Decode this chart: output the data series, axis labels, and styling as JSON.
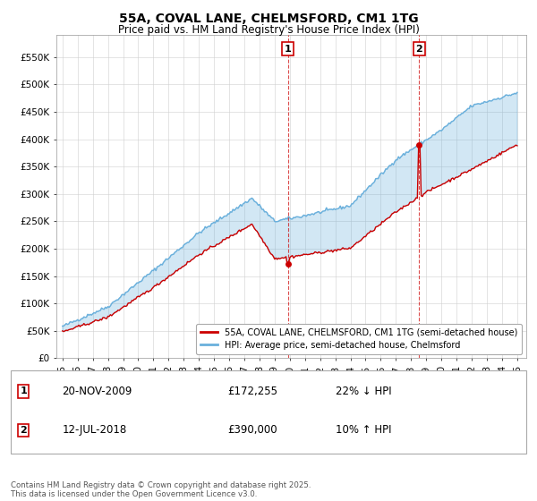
{
  "title1": "55A, COVAL LANE, CHELMSFORD, CM1 1TG",
  "title2": "Price paid vs. HM Land Registry's House Price Index (HPI)",
  "legend_line1": "55A, COVAL LANE, CHELMSFORD, CM1 1TG (semi-detached house)",
  "legend_line2": "HPI: Average price, semi-detached house, Chelmsford",
  "annotation1_label": "1",
  "annotation1_date": "20-NOV-2009",
  "annotation1_price": "£172,255",
  "annotation1_hpi": "22% ↓ HPI",
  "annotation2_label": "2",
  "annotation2_date": "12-JUL-2018",
  "annotation2_price": "£390,000",
  "annotation2_hpi": "10% ↑ HPI",
  "footer": "Contains HM Land Registry data © Crown copyright and database right 2025.\nThis data is licensed under the Open Government Licence v3.0.",
  "hpi_color": "#6ab0dc",
  "price_color": "#cc0000",
  "vline_color": "#cc0000",
  "ylim": [
    0,
    580000
  ],
  "yticks": [
    0,
    50000,
    100000,
    150000,
    200000,
    250000,
    300000,
    350000,
    400000,
    450000,
    500000,
    550000
  ],
  "ytick_labels": [
    "£0",
    "£50K",
    "£100K",
    "£150K",
    "£200K",
    "£250K",
    "£300K",
    "£350K",
    "£400K",
    "£450K",
    "£500K",
    "£550K"
  ]
}
